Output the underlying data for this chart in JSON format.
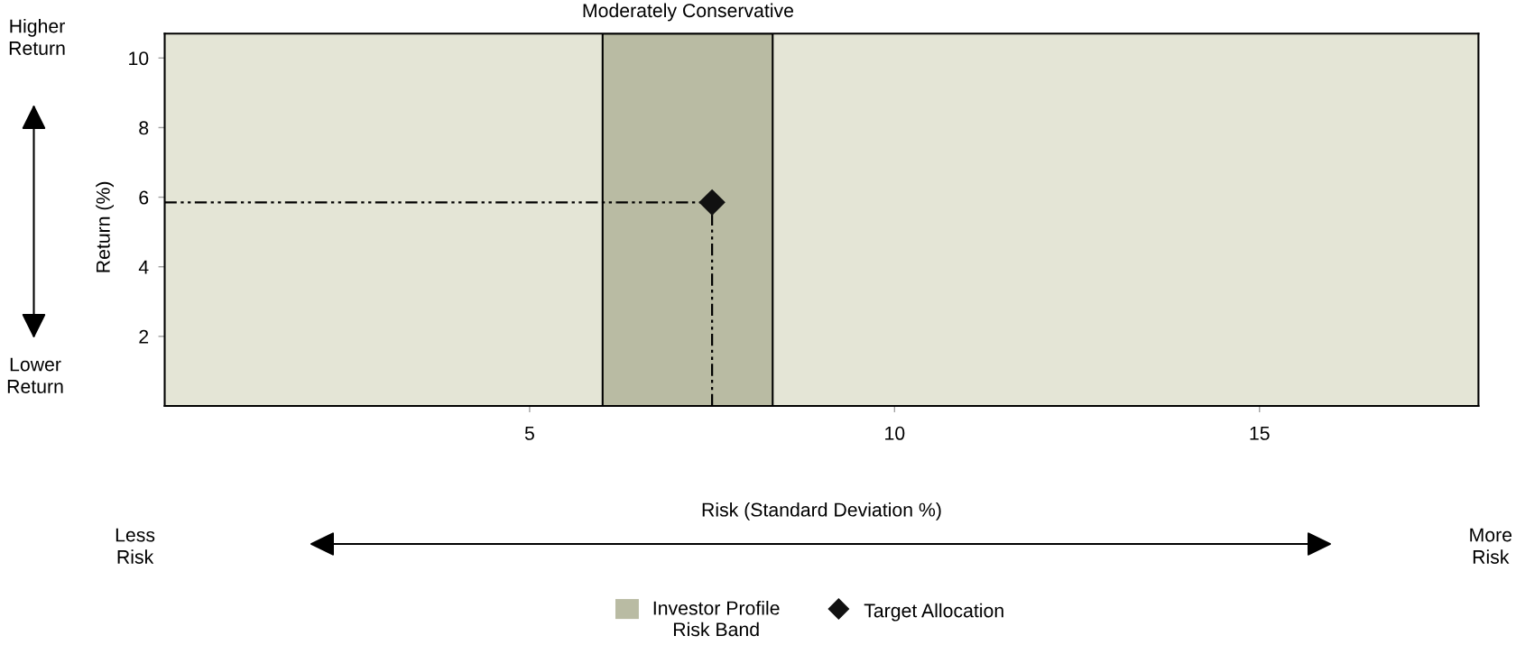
{
  "chart_data": {
    "type": "scatter",
    "xlabel": "Risk (Standard Deviation %)",
    "ylabel": "Return (%)",
    "xlim": [
      0,
      18
    ],
    "xticks": [
      5,
      10,
      15
    ],
    "ylim": [
      0,
      10.7
    ],
    "yticks": [
      2,
      4,
      6,
      8,
      10
    ],
    "series": [
      {
        "name": "Target Allocation",
        "x": [
          7.5
        ],
        "values": [
          5.85
        ],
        "color": "#111111",
        "marker": "diamond"
      }
    ],
    "ref_lines": [
      {
        "axis": "y",
        "value": 5.85,
        "color": "#000000",
        "line_style": "dashed"
      },
      {
        "axis": "x",
        "value": 7.5,
        "color": "#000000",
        "line_style": "dashed"
      }
    ],
    "bands": [
      {
        "axis": "x",
        "from": 6.0,
        "to": 8.33,
        "label": "Investor Profile\nRisk Band",
        "color": "#b9bba3"
      }
    ],
    "annotations": [
      "Higher\nReturn",
      "Lower\nReturn",
      "Less\nRisk",
      "More\nRisk",
      {
        "text": "Moderately Conservative",
        "x": 7.17,
        "y": 10.7
      }
    ],
    "grid": false,
    "legend": "bottom"
  }
}
